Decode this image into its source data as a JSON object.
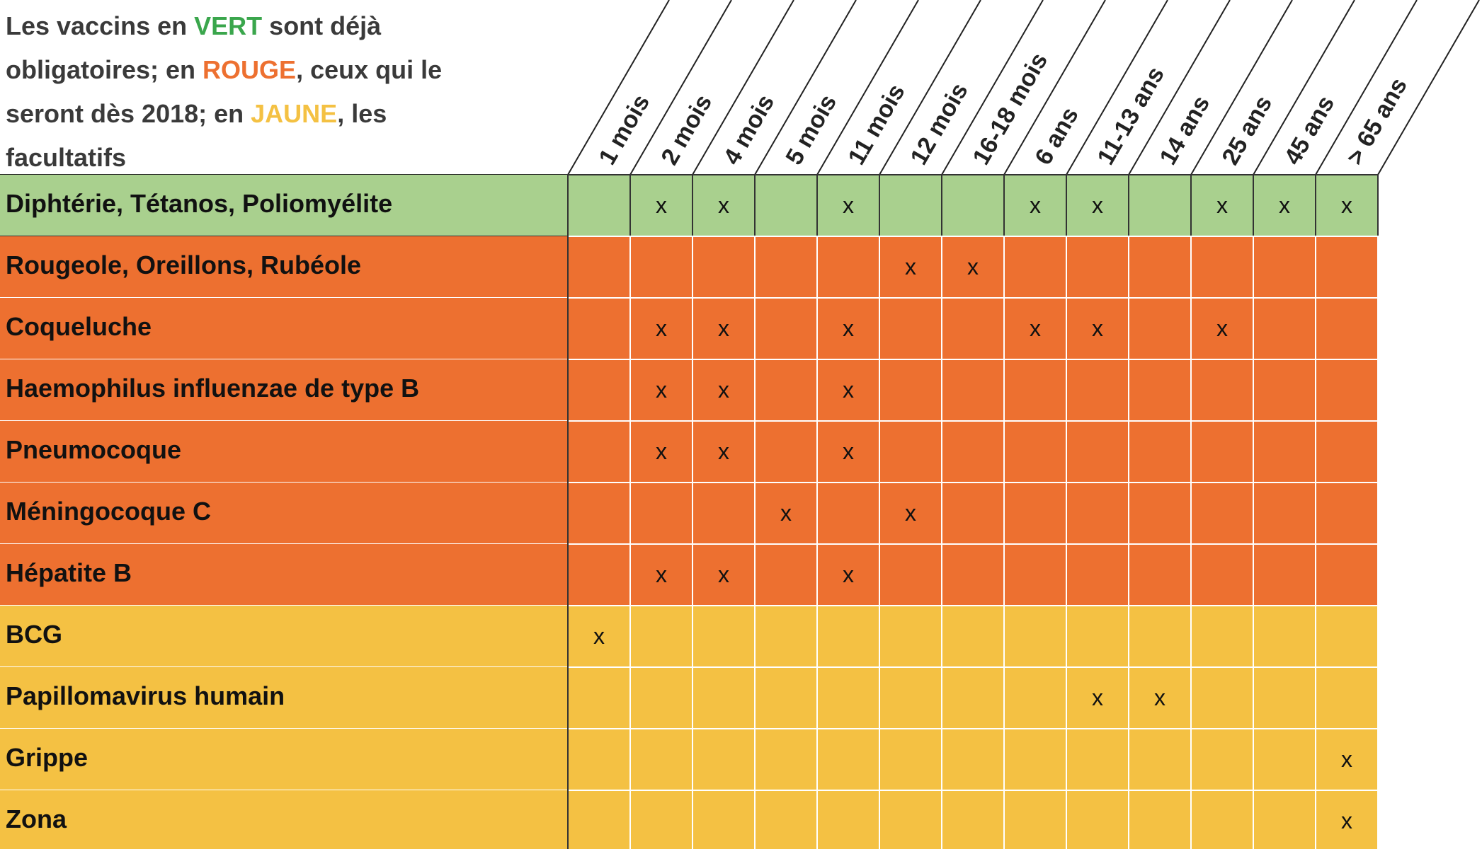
{
  "header": {
    "note": {
      "lines": [
        [
          {
            "text": "Les vaccins en "
          },
          {
            "text": "VERT",
            "color": "#3aa64c"
          },
          {
            "text": " sont déjà"
          }
        ],
        [
          {
            "text": "obligatoires; en "
          },
          {
            "text": "ROUGE",
            "color": "#ed7030"
          },
          {
            "text": ", ceux qui le"
          }
        ],
        [
          {
            "text": "seront dès 2018; en "
          },
          {
            "text": "JAUNE",
            "color": "#f4c143"
          },
          {
            "text": ", les"
          }
        ],
        [
          {
            "text": "facultatifs"
          }
        ]
      ]
    }
  },
  "table": {
    "columns": [
      "1 mois",
      "2 mois",
      "4 mois",
      "5 mois",
      "11 mois",
      "12 mois",
      "16-18 mois",
      "6 ans",
      "11-13 ans",
      "14 ans",
      "25 ans",
      "45 ans",
      "> 65 ans"
    ],
    "rows": [
      {
        "name": "Diphtérie, Tétanos, Poliomyélite",
        "color": "#a9d08e",
        "cells": [
          null,
          "x",
          "x",
          null,
          "x",
          null,
          null,
          "x",
          "x",
          null,
          "x",
          "x",
          "x"
        ]
      },
      {
        "name": "Rougeole,  Oreillons, Rubéole",
        "color": "#ed7030",
        "cells": [
          null,
          null,
          null,
          null,
          null,
          "x",
          "x",
          null,
          null,
          null,
          null,
          null,
          null
        ]
      },
      {
        "name": "Coqueluche",
        "color": "#ed7030",
        "cells": [
          null,
          "x",
          "x",
          null,
          "x",
          null,
          null,
          "x",
          "x",
          null,
          "x",
          null,
          null
        ]
      },
      {
        "name": "Haemophilus influenzae de type B",
        "color": "#ed7030",
        "cells": [
          null,
          "x",
          "x",
          null,
          "x",
          null,
          null,
          null,
          null,
          null,
          null,
          null,
          null
        ]
      },
      {
        "name": "Pneumocoque",
        "color": "#ed7030",
        "cells": [
          null,
          "x",
          "x",
          null,
          "x",
          null,
          null,
          null,
          null,
          null,
          null,
          null,
          null
        ]
      },
      {
        "name": "Méningocoque C",
        "color": "#ed7030",
        "cells": [
          null,
          null,
          null,
          "x",
          null,
          "x",
          null,
          null,
          null,
          null,
          null,
          null,
          null
        ]
      },
      {
        "name": "Hépatite B",
        "color": "#ed7030",
        "cells": [
          null,
          "x",
          "x",
          null,
          "x",
          null,
          null,
          null,
          null,
          null,
          null,
          null,
          null
        ]
      },
      {
        "name": "BCG",
        "color": "#f4c143",
        "cells": [
          "x",
          null,
          null,
          null,
          null,
          null,
          null,
          null,
          null,
          null,
          null,
          null,
          null
        ]
      },
      {
        "name": "Papillomavirus humain",
        "color": "#f4c143",
        "cells": [
          null,
          null,
          null,
          null,
          null,
          null,
          null,
          null,
          "x",
          "x",
          null,
          null,
          null
        ]
      },
      {
        "name": "Grippe",
        "color": "#f4c143",
        "cells": [
          null,
          null,
          null,
          null,
          null,
          null,
          null,
          null,
          null,
          null,
          null,
          null,
          "x"
        ]
      },
      {
        "name": "Zona",
        "color": "#f4c143",
        "cells": [
          null,
          null,
          null,
          null,
          null,
          null,
          null,
          null,
          null,
          null,
          null,
          null,
          "x"
        ]
      }
    ]
  }
}
